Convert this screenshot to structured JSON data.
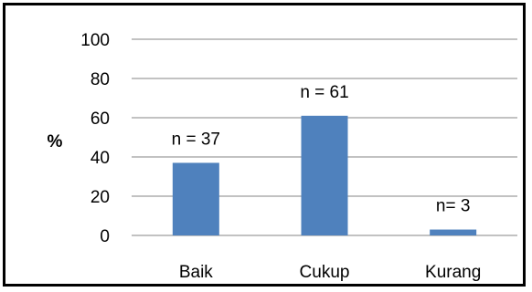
{
  "chart_data": {
    "type": "bar",
    "categories": [
      "Baik",
      "Cukup",
      "Kurang"
    ],
    "values": [
      37,
      61,
      3
    ],
    "data_labels": [
      "n = 37",
      "n = 61",
      "n= 3"
    ],
    "title": "",
    "xlabel": "",
    "ylabel": "%",
    "ylim": [
      0,
      100
    ],
    "yticks": [
      0,
      20,
      40,
      60,
      80,
      100
    ],
    "grid": true,
    "bar_color": "#4f81bd",
    "grid_color": "#868686"
  }
}
